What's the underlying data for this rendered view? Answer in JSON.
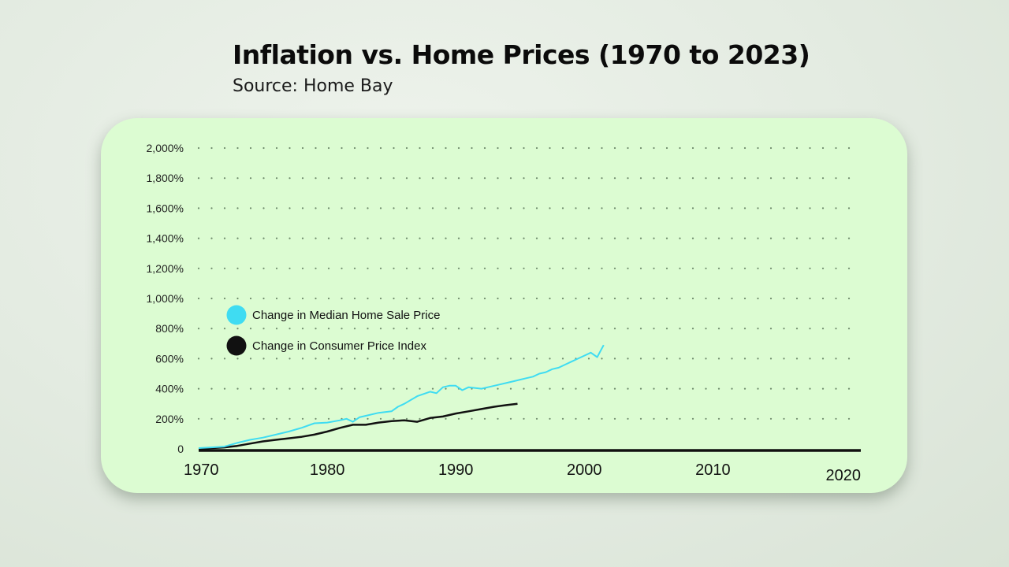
{
  "header": {
    "title": "Inflation vs. Home Prices (1970 to 2023)",
    "subtitle": "Source: Home Bay"
  },
  "colors": {
    "card_background": "#dcfcd2",
    "home_price_series": "#3fdcf2",
    "cpi_series": "#111111"
  },
  "chart_data": {
    "type": "line",
    "title": "Inflation vs. Home Prices (1970 to 2023)",
    "subtitle": "Source: Home Bay",
    "xlabel": "",
    "ylabel": "",
    "xlim": [
      1970,
      2021.5
    ],
    "ylim": [
      0,
      2000
    ],
    "x_ticks": [
      "1970",
      "1980",
      "1990",
      "2000",
      "2010",
      "2020"
    ],
    "y_ticks": [
      "0",
      "200%",
      "400%",
      "600%",
      "800%",
      "1,000%",
      "1,200%",
      "1,400%",
      "1,600%",
      "1,800%",
      "2,000%"
    ],
    "grid": "dotted horizontal",
    "legend_position": "upper-left",
    "series": [
      {
        "name": "Change in Median Home Sale Price",
        "color": "#3fdcf2",
        "x": [
          1970,
          1971,
          1972,
          1973,
          1974,
          1975,
          1976,
          1977,
          1978,
          1979,
          1980,
          1981,
          1981.5,
          1982,
          1982.5,
          1983,
          1984,
          1985,
          1985.5,
          1986,
          1987,
          1988,
          1988.5,
          1989,
          1989.5,
          1990,
          1990.5,
          1991,
          1992,
          1992.5,
          1993,
          1994,
          1994.5,
          1995,
          1995.5,
          1996,
          1996.5,
          1997,
          1997.5,
          1998,
          1998.5,
          1999,
          1999.5,
          2000,
          2000.5,
          2001,
          2001.5
        ],
        "values": [
          5,
          10,
          15,
          40,
          60,
          75,
          95,
          115,
          140,
          170,
          175,
          190,
          200,
          180,
          210,
          220,
          240,
          250,
          280,
          300,
          350,
          380,
          370,
          410,
          420,
          420,
          390,
          410,
          400,
          410,
          420,
          440,
          450,
          460,
          470,
          480,
          500,
          510,
          530,
          540,
          560,
          580,
          600,
          620,
          640,
          610,
          690
        ]
      },
      {
        "name": "Change in Consumer Price Index",
        "color": "#111111",
        "x": [
          1970,
          1971,
          1972,
          1973,
          1974,
          1975,
          1976,
          1977,
          1978,
          1979,
          1980,
          1981,
          1982,
          1983,
          1984,
          1985,
          1986,
          1987,
          1988,
          1989,
          1990,
          1991,
          1992,
          1993,
          1994,
          1994.8
        ],
        "values": [
          0,
          5,
          10,
          20,
          35,
          50,
          60,
          70,
          80,
          95,
          115,
          140,
          160,
          160,
          175,
          185,
          190,
          180,
          205,
          215,
          235,
          250,
          265,
          280,
          292,
          300
        ]
      }
    ],
    "baseline": {
      "name": "zero baseline",
      "x": [
        1970,
        2021.5
      ],
      "values": [
        0,
        0
      ]
    }
  },
  "legend": [
    {
      "label": "Change in Median Home Sale Price",
      "color": "#3fdcf2"
    },
    {
      "label": "Change in Consumer Price Index",
      "color": "#111111"
    }
  ]
}
